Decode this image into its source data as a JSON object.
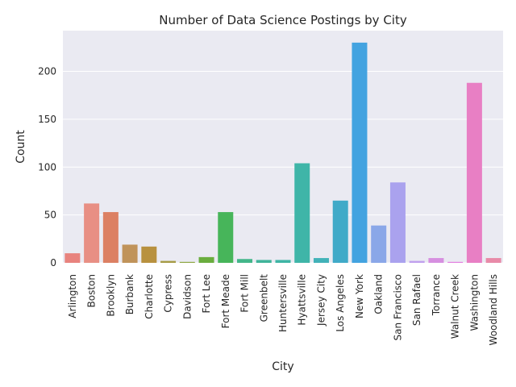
{
  "chart_data": {
    "type": "bar",
    "title": "Number of Data Science Postings by City",
    "xlabel": "City",
    "ylabel": "Count",
    "ylim": [
      0,
      240
    ],
    "yticks": [
      0,
      50,
      100,
      150,
      200
    ],
    "grid": true,
    "background": "#eaeaf2",
    "categories": [
      "Arlington",
      "Boston",
      "Brooklyn",
      "Burbank",
      "Charlotte",
      "Cypress",
      "Davidson",
      "Fort Lee",
      "Fort Meade",
      "Fort Mill",
      "Greenbelt",
      "Huntersville",
      "Hyattsville",
      "Jersey City",
      "Los Angeles",
      "New York",
      "Oakland",
      "San Francisco",
      "San Rafael",
      "Torrance",
      "Walnut Creek",
      "Washington",
      "Woodland Hills"
    ],
    "values": [
      10,
      62,
      53,
      19,
      17,
      2,
      1,
      6,
      53,
      4,
      3,
      3,
      104,
      5,
      65,
      230,
      39,
      84,
      2,
      5,
      1,
      188,
      5
    ],
    "colors": [
      "#e8837e",
      "#e88f84",
      "#dc8063",
      "#c0935a",
      "#b8913f",
      "#a69b45",
      "#8ea742",
      "#6aad3e",
      "#47b55a",
      "#43b68a",
      "#41b49a",
      "#3fb5a5",
      "#3fb5a8",
      "#42b2b8",
      "#40aac8",
      "#43a3e0",
      "#8aa7e8",
      "#aaa2ee",
      "#c0a0ee",
      "#d68fe0",
      "#e27fe0",
      "#e87fc4",
      "#e88aa8"
    ]
  }
}
